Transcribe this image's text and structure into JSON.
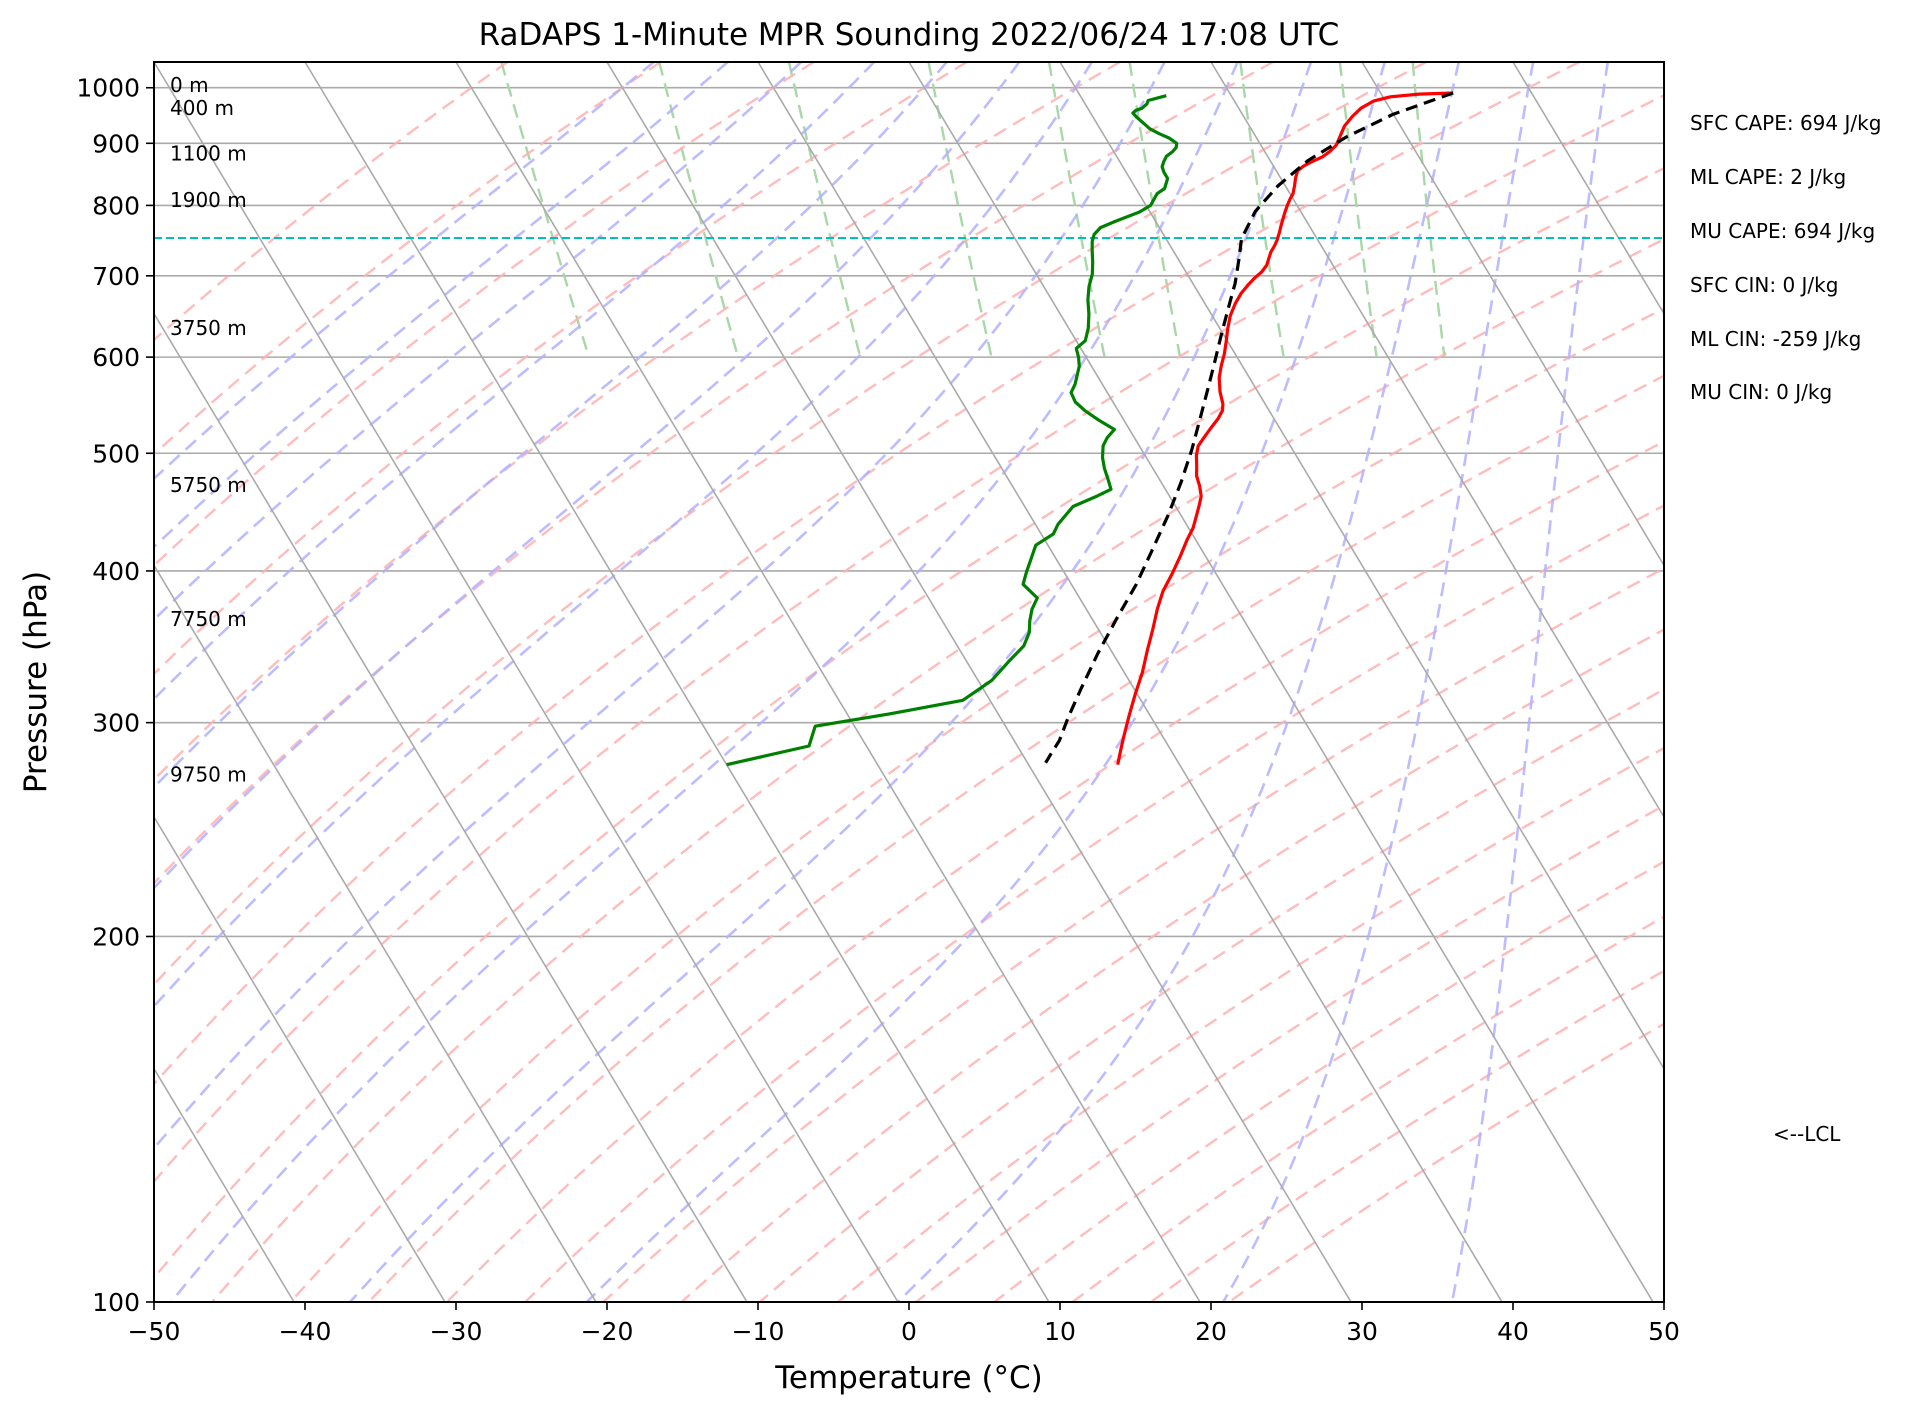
{
  "chart_data": {
    "type": "line",
    "title": "RaDAPS 1-Minute MPR Sounding 2022/06/24 17:08 UTC",
    "xlabel": "Temperature (°C)",
    "ylabel": "Pressure (hPa)",
    "xlim": [
      -50,
      50
    ],
    "ylim": [
      1050,
      100
    ],
    "y_scale": "log",
    "x_ticks": [
      -50,
      -40,
      -30,
      -20,
      -10,
      0,
      10,
      20,
      30,
      40,
      50
    ],
    "x_tick_labels": [
      "−50",
      "−40",
      "−30",
      "−20",
      "−10",
      "0",
      "10",
      "20",
      "30",
      "40",
      "50"
    ],
    "y_ticks": [
      100,
      200,
      300,
      400,
      500,
      600,
      700,
      800,
      900,
      1000
    ],
    "y_tick_labels": [
      "100",
      "200",
      "300",
      "400",
      "500",
      "600",
      "700",
      "800",
      "900",
      "1000"
    ],
    "grid": true,
    "series": [
      {
        "color": "#ff0000",
        "points": [
          [
            34.8,
            990
          ],
          [
            32.5,
            988
          ],
          [
            30.5,
            983
          ],
          [
            29.2,
            975
          ],
          [
            28.1,
            962
          ],
          [
            27.2,
            947
          ],
          [
            26.3,
            930
          ],
          [
            25.6,
            912
          ],
          [
            25.0,
            897
          ],
          [
            24.3,
            886
          ],
          [
            23.6,
            877
          ],
          [
            22.7,
            869
          ],
          [
            22.0,
            862
          ],
          [
            21.4,
            854
          ],
          [
            21.0,
            843
          ],
          [
            20.6,
            830
          ],
          [
            20.2,
            818
          ],
          [
            19.8,
            810
          ],
          [
            19.4,
            801
          ],
          [
            18.9,
            789
          ],
          [
            18.5,
            779
          ],
          [
            18.1,
            769
          ],
          [
            17.8,
            761
          ],
          [
            17.3,
            749
          ],
          [
            16.9,
            741
          ],
          [
            16.4,
            732
          ],
          [
            16.0,
            723
          ],
          [
            15.6,
            714
          ],
          [
            15.0,
            705
          ],
          [
            14.3,
            697
          ],
          [
            13.6,
            688
          ],
          [
            12.8,
            677
          ],
          [
            12.0,
            664
          ],
          [
            11.2,
            649
          ],
          [
            10.5,
            633
          ],
          [
            9.9,
            618
          ],
          [
            9.3,
            604
          ],
          [
            8.6,
            590
          ],
          [
            8.0,
            577
          ],
          [
            7.5,
            562
          ],
          [
            7.2,
            549
          ],
          [
            6.9,
            542
          ],
          [
            6.3,
            534
          ],
          [
            5.4,
            524
          ],
          [
            4.6,
            515
          ],
          [
            3.9,
            507
          ],
          [
            3.4,
            498
          ],
          [
            3.0,
            488
          ],
          [
            2.6,
            479
          ],
          [
            2.4,
            470
          ],
          [
            2.1,
            461
          ],
          [
            1.6,
            453
          ],
          [
            1.0,
            444
          ],
          [
            0.3,
            434
          ],
          [
            -0.6,
            424
          ],
          [
            -1.7,
            411
          ],
          [
            -2.9,
            398
          ],
          [
            -4.2,
            385
          ],
          [
            -5.3,
            372
          ],
          [
            -6.4,
            358
          ],
          [
            -7.6,
            344
          ],
          [
            -8.8,
            330
          ],
          [
            -10.1,
            317
          ],
          [
            -11.4,
            304
          ],
          [
            -12.6,
            292
          ],
          [
            -13.4,
            284
          ],
          [
            -14.1,
            277
          ]
        ]
      },
      {
        "color": "#008000",
        "points": [
          [
            15.7,
            985
          ],
          [
            14.9,
            980
          ],
          [
            14.3,
            976
          ],
          [
            14.1,
            970
          ],
          [
            13.6,
            962
          ],
          [
            13.1,
            958
          ],
          [
            12.8,
            953
          ],
          [
            12.9,
            945
          ],
          [
            13.1,
            935
          ],
          [
            13.3,
            925
          ],
          [
            13.7,
            917
          ],
          [
            14.2,
            909
          ],
          [
            14.5,
            900
          ],
          [
            14.3,
            893
          ],
          [
            13.9,
            886
          ],
          [
            13.3,
            878
          ],
          [
            12.9,
            869
          ],
          [
            12.6,
            861
          ],
          [
            12.5,
            852
          ],
          [
            12.5,
            842
          ],
          [
            12.2,
            834
          ],
          [
            11.9,
            826
          ],
          [
            11.2,
            818
          ],
          [
            10.8,
            810
          ],
          [
            10.3,
            800
          ],
          [
            9.3,
            790
          ],
          [
            7.3,
            776
          ],
          [
            6.1,
            767
          ],
          [
            5.4,
            757
          ],
          [
            5.0,
            747
          ],
          [
            4.6,
            733
          ],
          [
            4.2,
            718
          ],
          [
            3.7,
            702
          ],
          [
            3.0,
            686
          ],
          [
            2.4,
            669
          ],
          [
            1.9,
            651
          ],
          [
            1.3,
            634
          ],
          [
            0.6,
            619
          ],
          [
            -0.3,
            610
          ],
          [
            -0.5,
            600
          ],
          [
            -0.8,
            590
          ],
          [
            -1.3,
            580
          ],
          [
            -1.8,
            570
          ],
          [
            -2.4,
            561
          ],
          [
            -2.5,
            551
          ],
          [
            -2.2,
            542
          ],
          [
            -1.7,
            533
          ],
          [
            -1.0,
            523
          ],
          [
            -1.8,
            515
          ],
          [
            -2.4,
            507
          ],
          [
            -2.9,
            496
          ],
          [
            -3.2,
            486
          ],
          [
            -3.4,
            476
          ],
          [
            -3.6,
            467
          ],
          [
            -4.8,
            461
          ],
          [
            -6.8,
            452
          ],
          [
            -7.7,
            444
          ],
          [
            -8.5,
            437
          ],
          [
            -9.2,
            429
          ],
          [
            -10.8,
            420
          ],
          [
            -11.6,
            410
          ],
          [
            -12.5,
            399
          ],
          [
            -13.2,
            390
          ],
          [
            -12.8,
            380
          ],
          [
            -13.6,
            372
          ],
          [
            -14.2,
            364
          ],
          [
            -14.7,
            356
          ],
          [
            -15.6,
            347
          ],
          [
            -17.2,
            337
          ],
          [
            -19.1,
            325
          ],
          [
            -21.8,
            313
          ],
          [
            -27.2,
            305
          ],
          [
            -32.6,
            298
          ],
          [
            -33.8,
            287
          ],
          [
            -40.0,
            277
          ]
        ]
      },
      {
        "color": "#000000",
        "dashed": true,
        "points": [
          [
            34.8,
            990
          ],
          [
            30.0,
            951
          ],
          [
            26.0,
            911
          ],
          [
            22.5,
            871
          ],
          [
            19.5,
            830
          ],
          [
            17.0,
            791
          ],
          [
            15.0,
            751
          ],
          [
            14.0,
            722
          ],
          [
            12.8,
            690
          ],
          [
            11.3,
            657
          ],
          [
            9.8,
            625
          ],
          [
            8.3,
            594
          ],
          [
            6.7,
            563
          ],
          [
            5.0,
            532
          ],
          [
            3.3,
            503
          ],
          [
            1.3,
            473
          ],
          [
            -0.9,
            444
          ],
          [
            -3.3,
            416
          ],
          [
            -5.7,
            390
          ],
          [
            -8.3,
            366
          ],
          [
            -11.0,
            342
          ],
          [
            -13.5,
            320
          ],
          [
            -15.5,
            303
          ],
          [
            -17.0,
            290
          ],
          [
            -18.2,
            282
          ],
          [
            -18.8,
            278
          ]
        ]
      }
    ],
    "lcl_pressure": 752,
    "lcl_label": "<--LCL",
    "lcl_color": "#00bfbf",
    "heights": [
      {
        "label": "9750 m",
        "p": 272
      },
      {
        "label": "7750 m",
        "p": 365
      },
      {
        "label": "5750 m",
        "p": 471
      },
      {
        "label": "3750 m",
        "p": 634
      },
      {
        "label": "1900 m",
        "p": 808
      },
      {
        "label": "1100 m",
        "p": 883
      },
      {
        "label": "400 m",
        "p": 962
      },
      {
        "label": "0 m",
        "p": 1005
      }
    ]
  },
  "stats": [
    "SFC CAPE: 694 J/kg",
    "ML CAPE: 2 J/kg",
    "MU CAPE: 694 J/kg",
    "SFC CIN: 0 J/kg",
    "ML CIN: -259 J/kg",
    "MU CIN: 0 J/kg"
  ],
  "colors": {
    "isotherm": "#aaaaaa",
    "dry_adiabat": "#ffb0b0",
    "moist_adiabat": "#b0b0ff",
    "mixing_ratio": "#a8d8a8"
  }
}
